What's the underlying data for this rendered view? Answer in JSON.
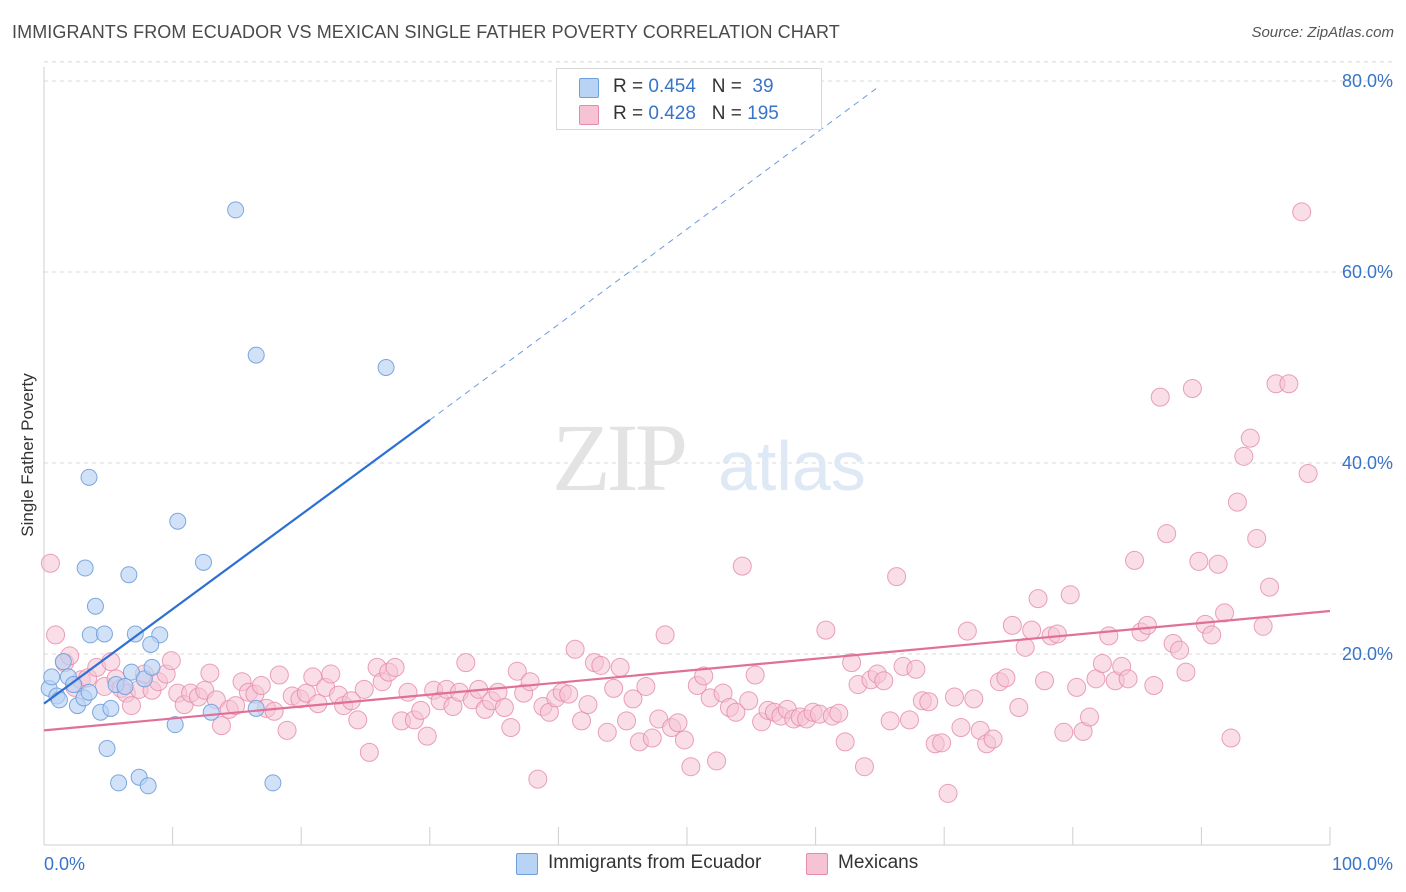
{
  "title": "IMMIGRANTS FROM ECUADOR VS MEXICAN SINGLE FATHER POVERTY CORRELATION CHART",
  "source": "Source: ZipAtlas.com",
  "watermark": {
    "zip": "ZIP",
    "atlas": "atlas"
  },
  "legend_top": {
    "rows": [
      {
        "r_label": "R = ",
        "r_value": "0.454",
        "n_label": "N = ",
        "n_value": " 39"
      },
      {
        "r_label": "R = ",
        "r_value": "0.428",
        "n_label": "N = ",
        "n_value": "195"
      }
    ]
  },
  "legend_bottom": {
    "items": [
      {
        "label": "Immigrants from Ecuador"
      },
      {
        "label": "Mexicans"
      }
    ]
  },
  "colors": {
    "ecuador_fill": "#b9d3f4",
    "ecuador_stroke": "#6f9fdc",
    "ecuador_line": "#2d6fd3",
    "mexican_fill": "#f6c3d4",
    "mexican_stroke": "#e58aa9",
    "mexican_line": "#e0709a",
    "tick_text": "#3874c8",
    "grid": "#d8d8d8"
  },
  "chart_data": {
    "type": "scatter",
    "title": "IMMIGRANTS FROM ECUADOR VS MEXICAN SINGLE FATHER POVERTY CORRELATION CHART",
    "xlabel": "",
    "ylabel": "Single Father Poverty",
    "xlim": [
      0,
      100
    ],
    "ylim": [
      0,
      82
    ],
    "x_tick_labels": [
      "0.0%",
      "100.0%"
    ],
    "y_ticks": [
      20,
      40,
      60,
      80
    ],
    "y_tick_labels": [
      "20.0%",
      "40.0%",
      "60.0%",
      "80.0%"
    ],
    "grid": true,
    "legend_placement": "bottom-center",
    "series": [
      {
        "name": "Immigrants from Ecuador",
        "r": 0.454,
        "n": 39,
        "trend": {
          "x": [
            0,
            30
          ],
          "y": [
            14.8,
            44.5
          ],
          "dashed_to": [
            65,
            79.5
          ]
        },
        "points": [
          [
            0.4,
            16.4
          ],
          [
            0.6,
            17.6
          ],
          [
            1.0,
            15.6
          ],
          [
            1.2,
            15.2
          ],
          [
            1.5,
            19.2
          ],
          [
            1.9,
            17.6
          ],
          [
            2.3,
            16.8
          ],
          [
            2.6,
            14.6
          ],
          [
            3.1,
            15.4
          ],
          [
            3.5,
            16.0
          ],
          [
            3.2,
            29.0
          ],
          [
            3.5,
            38.5
          ],
          [
            3.6,
            22.0
          ],
          [
            4.0,
            25.0
          ],
          [
            4.4,
            13.9
          ],
          [
            4.7,
            22.1
          ],
          [
            4.9,
            10.1
          ],
          [
            5.2,
            14.3
          ],
          [
            5.6,
            16.8
          ],
          [
            5.8,
            6.5
          ],
          [
            6.3,
            16.6
          ],
          [
            6.6,
            28.3
          ],
          [
            6.8,
            18.1
          ],
          [
            7.1,
            22.1
          ],
          [
            7.4,
            7.1
          ],
          [
            7.8,
            17.4
          ],
          [
            8.1,
            6.2
          ],
          [
            8.4,
            18.6
          ],
          [
            9.0,
            22.0
          ],
          [
            10.2,
            12.6
          ],
          [
            10.4,
            33.9
          ],
          [
            12.4,
            29.6
          ],
          [
            13.0,
            13.9
          ],
          [
            14.9,
            66.5
          ],
          [
            16.5,
            14.3
          ],
          [
            16.5,
            51.3
          ],
          [
            17.8,
            6.5
          ],
          [
            26.6,
            50.0
          ],
          [
            8.3,
            21.0
          ]
        ]
      },
      {
        "name": "Mexicans",
        "r": 0.428,
        "n": 195,
        "trend": {
          "x": [
            0,
            100
          ],
          "y": [
            12.0,
            24.5
          ]
        },
        "points": [
          [
            0.5,
            29.5
          ],
          [
            0.9,
            22.0
          ],
          [
            1.6,
            19.1
          ],
          [
            2.0,
            19.8
          ],
          [
            2.4,
            16.5
          ],
          [
            2.9,
            17.3
          ],
          [
            3.4,
            17.5
          ],
          [
            4.1,
            18.6
          ],
          [
            4.7,
            16.6
          ],
          [
            5.2,
            19.2
          ],
          [
            5.6,
            17.4
          ],
          [
            6.0,
            16.4
          ],
          [
            6.4,
            15.9
          ],
          [
            6.8,
            14.6
          ],
          [
            7.4,
            16.3
          ],
          [
            7.8,
            17.9
          ],
          [
            8.4,
            16.2
          ],
          [
            8.9,
            17.1
          ],
          [
            9.5,
            17.9
          ],
          [
            9.9,
            19.3
          ],
          [
            10.4,
            15.9
          ],
          [
            10.9,
            14.7
          ],
          [
            11.4,
            15.9
          ],
          [
            12.0,
            15.5
          ],
          [
            12.5,
            16.2
          ],
          [
            12.9,
            18.0
          ],
          [
            13.4,
            15.2
          ],
          [
            13.8,
            12.5
          ],
          [
            14.4,
            14.2
          ],
          [
            14.9,
            14.6
          ],
          [
            15.4,
            17.1
          ],
          [
            15.9,
            16.0
          ],
          [
            16.4,
            15.8
          ],
          [
            16.9,
            16.7
          ],
          [
            17.3,
            14.3
          ],
          [
            17.9,
            14.0
          ],
          [
            18.3,
            17.8
          ],
          [
            18.9,
            12.0
          ],
          [
            19.3,
            15.6
          ],
          [
            19.9,
            15.3
          ],
          [
            20.4,
            15.9
          ],
          [
            20.9,
            17.6
          ],
          [
            21.3,
            14.8
          ],
          [
            21.9,
            16.5
          ],
          [
            22.3,
            17.9
          ],
          [
            22.9,
            15.7
          ],
          [
            23.3,
            14.6
          ],
          [
            23.9,
            15.1
          ],
          [
            24.4,
            13.1
          ],
          [
            24.9,
            16.3
          ],
          [
            25.3,
            9.7
          ],
          [
            25.9,
            18.6
          ],
          [
            26.3,
            17.1
          ],
          [
            26.8,
            18.1
          ],
          [
            27.3,
            18.6
          ],
          [
            27.8,
            13.0
          ],
          [
            28.3,
            16.0
          ],
          [
            28.8,
            13.1
          ],
          [
            29.3,
            14.1
          ],
          [
            29.8,
            11.4
          ],
          [
            30.3,
            16.2
          ],
          [
            30.8,
            15.1
          ],
          [
            31.3,
            16.3
          ],
          [
            31.8,
            14.5
          ],
          [
            32.3,
            16.0
          ],
          [
            32.8,
            19.1
          ],
          [
            33.3,
            15.2
          ],
          [
            33.8,
            16.3
          ],
          [
            34.3,
            14.2
          ],
          [
            34.8,
            15.1
          ],
          [
            35.3,
            16.0
          ],
          [
            35.8,
            14.4
          ],
          [
            36.3,
            12.3
          ],
          [
            36.8,
            18.2
          ],
          [
            37.3,
            15.9
          ],
          [
            37.8,
            17.1
          ],
          [
            38.4,
            6.9
          ],
          [
            38.8,
            14.5
          ],
          [
            39.3,
            13.9
          ],
          [
            39.8,
            15.4
          ],
          [
            40.3,
            16.0
          ],
          [
            40.8,
            15.8
          ],
          [
            41.3,
            20.5
          ],
          [
            41.8,
            13.0
          ],
          [
            42.3,
            14.7
          ],
          [
            42.8,
            19.1
          ],
          [
            43.3,
            18.8
          ],
          [
            43.8,
            11.8
          ],
          [
            44.3,
            16.4
          ],
          [
            44.8,
            18.6
          ],
          [
            45.3,
            13.0
          ],
          [
            45.8,
            15.3
          ],
          [
            46.3,
            10.8
          ],
          [
            46.8,
            16.6
          ],
          [
            47.3,
            11.2
          ],
          [
            47.8,
            13.2
          ],
          [
            48.3,
            22.0
          ],
          [
            48.8,
            12.3
          ],
          [
            49.3,
            12.8
          ],
          [
            49.8,
            11.0
          ],
          [
            50.3,
            8.2
          ],
          [
            50.8,
            16.7
          ],
          [
            51.3,
            17.7
          ],
          [
            51.8,
            15.4
          ],
          [
            52.3,
            8.8
          ],
          [
            52.8,
            15.9
          ],
          [
            53.3,
            14.4
          ],
          [
            53.8,
            13.9
          ],
          [
            54.3,
            29.2
          ],
          [
            54.8,
            15.1
          ],
          [
            55.3,
            17.8
          ],
          [
            55.8,
            12.9
          ],
          [
            56.3,
            14.1
          ],
          [
            56.8,
            13.9
          ],
          [
            57.3,
            13.5
          ],
          [
            57.8,
            14.2
          ],
          [
            58.3,
            13.2
          ],
          [
            58.8,
            13.4
          ],
          [
            59.3,
            13.2
          ],
          [
            59.8,
            13.9
          ],
          [
            60.3,
            13.7
          ],
          [
            60.8,
            22.5
          ],
          [
            61.3,
            13.5
          ],
          [
            61.8,
            13.8
          ],
          [
            62.3,
            10.8
          ],
          [
            62.8,
            19.1
          ],
          [
            63.3,
            16.8
          ],
          [
            63.8,
            8.2
          ],
          [
            64.3,
            17.3
          ],
          [
            64.8,
            17.9
          ],
          [
            65.3,
            17.2
          ],
          [
            65.8,
            13.0
          ],
          [
            66.3,
            28.1
          ],
          [
            66.8,
            18.7
          ],
          [
            67.3,
            13.1
          ],
          [
            67.8,
            18.4
          ],
          [
            68.3,
            15.1
          ],
          [
            68.8,
            15.0
          ],
          [
            69.3,
            10.6
          ],
          [
            69.8,
            10.7
          ],
          [
            70.3,
            5.4
          ],
          [
            70.8,
            15.5
          ],
          [
            71.3,
            12.3
          ],
          [
            71.8,
            22.4
          ],
          [
            72.3,
            15.3
          ],
          [
            72.8,
            12.0
          ],
          [
            73.3,
            10.6
          ],
          [
            73.8,
            11.1
          ],
          [
            74.3,
            17.1
          ],
          [
            74.8,
            17.5
          ],
          [
            75.3,
            23.0
          ],
          [
            75.8,
            14.4
          ],
          [
            76.3,
            20.7
          ],
          [
            76.8,
            22.5
          ],
          [
            77.3,
            25.8
          ],
          [
            77.8,
            17.2
          ],
          [
            78.3,
            21.9
          ],
          [
            78.8,
            22.1
          ],
          [
            79.3,
            11.8
          ],
          [
            79.8,
            26.2
          ],
          [
            80.3,
            16.5
          ],
          [
            80.8,
            11.9
          ],
          [
            81.3,
            13.4
          ],
          [
            81.8,
            17.4
          ],
          [
            82.3,
            19.0
          ],
          [
            82.8,
            21.9
          ],
          [
            83.3,
            17.2
          ],
          [
            83.8,
            18.7
          ],
          [
            84.3,
            17.4
          ],
          [
            84.8,
            29.8
          ],
          [
            85.3,
            22.3
          ],
          [
            85.8,
            23.0
          ],
          [
            86.3,
            16.7
          ],
          [
            86.8,
            46.9
          ],
          [
            87.3,
            32.6
          ],
          [
            87.8,
            21.1
          ],
          [
            88.3,
            20.4
          ],
          [
            88.8,
            18.1
          ],
          [
            89.3,
            47.8
          ],
          [
            89.8,
            29.7
          ],
          [
            90.3,
            23.1
          ],
          [
            90.8,
            22.0
          ],
          [
            91.3,
            29.4
          ],
          [
            91.8,
            24.3
          ],
          [
            92.3,
            11.2
          ],
          [
            92.8,
            35.9
          ],
          [
            93.3,
            40.7
          ],
          [
            93.8,
            42.6
          ],
          [
            94.3,
            32.1
          ],
          [
            94.8,
            22.9
          ],
          [
            95.3,
            27.0
          ],
          [
            95.8,
            48.3
          ],
          [
            96.8,
            48.3
          ],
          [
            98.3,
            38.9
          ],
          [
            97.8,
            66.3
          ]
        ]
      }
    ]
  }
}
